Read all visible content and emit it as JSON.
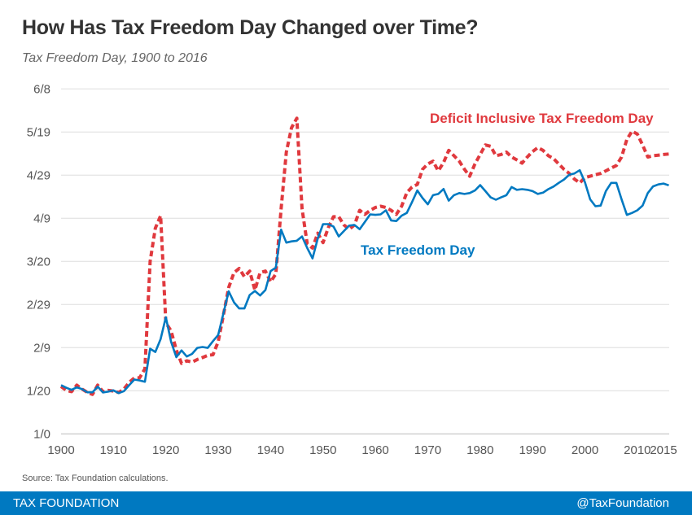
{
  "chart_data": {
    "type": "line",
    "title": "How Has Tax Freedom Day Changed over Time?",
    "subtitle": "Tax Freedom Day, 1900 to 2016",
    "xlabel": "",
    "ylabel": "",
    "xlim": [
      1900,
      2016
    ],
    "ylim": [
      0,
      160
    ],
    "x_ticks": [
      1900,
      1910,
      1920,
      1930,
      1940,
      1950,
      1960,
      1970,
      1980,
      1990,
      2000,
      2010,
      2015
    ],
    "x_tick_labels": [
      "1900",
      "1910",
      "1920",
      "1930",
      "1940",
      "1950",
      "1960",
      "1970",
      "1980",
      "1990",
      "2000",
      "2010",
      "2015"
    ],
    "y_ticks": [
      0,
      20,
      40,
      60,
      80,
      100,
      120,
      140,
      160
    ],
    "y_tick_labels": [
      "1/0",
      "1/20",
      "2/9",
      "2/29",
      "3/20",
      "4/9",
      "4/29",
      "5/19",
      "6/8"
    ],
    "y_unit": "day of year",
    "grid": true,
    "x_start": 1900,
    "series": [
      {
        "name": "Tax Freedom Day",
        "color": "#0079c1",
        "style": "solid",
        "values": [
          22.6,
          21.4,
          20.4,
          21.6,
          20.8,
          19.3,
          19.3,
          21.9,
          19.2,
          19.6,
          20.2,
          18.9,
          19.8,
          22.6,
          25.2,
          24.8,
          24.2,
          39.5,
          38.0,
          44.0,
          54.1,
          42.8,
          35.6,
          38.7,
          35.9,
          37.1,
          39.9,
          40.3,
          39.9,
          43.0,
          45.9,
          56.0,
          66.1,
          61.0,
          58.2,
          58.2,
          64.4,
          66.3,
          64.2,
          66.7,
          75.5,
          77.1,
          94.7,
          88.7,
          89.3,
          89.6,
          91.6,
          86.2,
          81.4,
          90.6,
          97.3,
          97.3,
          96.2,
          91.6,
          94.1,
          96.6,
          96.9,
          94.9,
          98.3,
          101.8,
          101.6,
          101.8,
          103.7,
          99.0,
          98.7,
          101.2,
          102.5,
          107.5,
          112.9,
          109.4,
          106.5,
          110.7,
          111.3,
          113.6,
          108.2,
          110.7,
          111.7,
          111.3,
          111.7,
          112.9,
          115.4,
          112.6,
          109.7,
          108.6,
          109.7,
          110.7,
          114.5,
          113.2,
          113.5,
          113.2,
          112.6,
          111.3,
          111.9,
          113.5,
          114.7,
          116.4,
          118.0,
          120.2,
          120.8,
          122.3,
          116.7,
          108.8,
          105.6,
          105.9,
          112.6,
          116.4,
          116.4,
          108.8,
          101.6,
          102.5,
          103.7,
          105.9,
          111.7,
          114.8,
          115.7,
          116.1,
          115.3
        ]
      },
      {
        "name": "Deficit Inclusive Tax Freedom Day",
        "color": "#e0393e",
        "style": "dashed",
        "values": [
          22.0,
          20.2,
          19.6,
          22.6,
          20.8,
          19.3,
          18.3,
          22.6,
          19.6,
          20.2,
          19.9,
          19.2,
          20.8,
          23.9,
          26.0,
          26.0,
          30.2,
          80.0,
          95.4,
          101.2,
          51.5,
          47.8,
          38.9,
          32.7,
          33.9,
          33.3,
          34.5,
          35.4,
          36.4,
          36.7,
          42.7,
          55.3,
          67.9,
          74.8,
          76.7,
          72.9,
          75.5,
          66.7,
          74.8,
          75.5,
          70.5,
          74.2,
          104.4,
          130.7,
          142.0,
          146.4,
          104.4,
          88.1,
          86.2,
          93.1,
          88.7,
          95.6,
          100.7,
          100.7,
          96.9,
          94.9,
          96.9,
          103.7,
          101.8,
          103.7,
          105.0,
          105.6,
          105.0,
          103.7,
          101.8,
          105.6,
          111.9,
          114.5,
          115.7,
          122.7,
          125.2,
          126.5,
          122.0,
          125.8,
          131.5,
          129.0,
          126.5,
          122.7,
          119.5,
          125.2,
          129.6,
          134.0,
          133.4,
          129.0,
          129.6,
          130.7,
          128.4,
          127.1,
          125.6,
          128.4,
          130.9,
          132.8,
          131.5,
          129.0,
          127.7,
          125.2,
          122.7,
          120.8,
          118.2,
          116.4,
          118.9,
          119.5,
          120.2,
          120.8,
          122.0,
          123.3,
          124.5,
          128.4,
          136.6,
          140.4,
          139.1,
          134.0,
          128.4,
          129.0,
          129.3,
          129.6,
          129.8
        ]
      }
    ],
    "annotations": [
      "Deficit Inclusive Tax Freedom Day",
      "Tax Freedom Day"
    ],
    "legend": "inline labels"
  },
  "source": "Source: Tax Foundation calculations.",
  "footer": {
    "brand": "TAX FOUNDATION",
    "handle": "@TaxFoundation"
  }
}
